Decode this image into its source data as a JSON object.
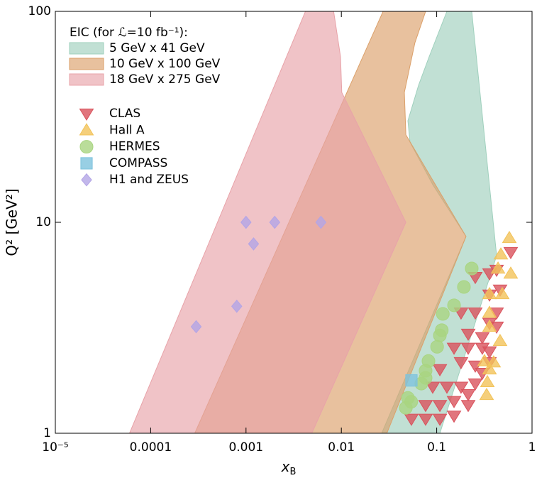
{
  "chart_data": {
    "type": "scatter",
    "xlabel": "x",
    "xlabel_subscript": "B",
    "ylabel": "Q² [GeV²]",
    "xscale": "log",
    "yscale": "log",
    "xlim": [
      1e-05,
      1
    ],
    "ylim": [
      1,
      100
    ],
    "xticks": [
      {
        "value": 1e-05,
        "label": "10⁻⁵"
      },
      0.0001,
      0.001,
      0.01,
      0.1,
      1
    ],
    "yticks": [
      1,
      10,
      100
    ],
    "legend_title": "EIC (for ℒ=10 fb⁻¹):",
    "legend": "upper left",
    "series": [
      {
        "name": "5 GeV x 41 GeV",
        "type": "area",
        "color": "#9fd0bd",
        "x": [
          0.0265,
          0.203,
          0.0908,
          0.0525,
          0.0499,
          0.0646,
          0.0834,
          0.128,
          0.233,
          0.425,
          0.108
        ],
        "y": [
          1,
          8.57,
          15.1,
          24,
          30.3,
          44.7,
          61,
          100,
          100,
          6.95,
          1
        ]
      },
      {
        "name": "10 GeV x 100 GeV",
        "type": "area",
        "color": "#dba06a",
        "x": [
          0.00029,
          0.0274,
          0.0766,
          0.0591,
          0.0458,
          0.0475,
          0.203,
          0.03
        ],
        "y": [
          1,
          100,
          100,
          71,
          41.3,
          26,
          8.57,
          1
        ]
      },
      {
        "name": "18 GeV x 275 GeV",
        "type": "area",
        "color": "#e8a3a9",
        "x": [
          6e-05,
          0.0042,
          0.0083,
          0.0098,
          0.0101,
          0.0475,
          0.0049
        ],
        "y": [
          1,
          100,
          100,
          61,
          41.3,
          10,
          1
        ]
      },
      {
        "name": "CLAS",
        "type": "scatter",
        "marker": "triangle-down",
        "color": "#d9535d",
        "x": [
          0.598,
          0.425,
          0.358,
          0.254,
          0.462,
          0.358,
          0.254,
          0.18,
          0.425,
          0.358,
          0.214,
          0.301,
          0.425,
          0.152,
          0.214,
          0.301,
          0.358,
          0.108,
          0.18,
          0.254,
          0.358,
          0.0908,
          0.128,
          0.18,
          0.254,
          0.0765,
          0.108,
          0.152,
          0.214,
          0.0765,
          0.108,
          0.152,
          0.0543,
          0.214,
          0.301
        ],
        "y": [
          7.22,
          5.95,
          5.72,
          5.5,
          4.79,
          4.54,
          3.73,
          3.73,
          3.73,
          3.33,
          2.96,
          2.85,
          3.2,
          2.54,
          2.54,
          2.54,
          2.44,
          2.01,
          2.17,
          2.09,
          2.17,
          1.66,
          1.66,
          1.66,
          1.72,
          1.36,
          1.36,
          1.42,
          1.36,
          1.17,
          1.17,
          1.21,
          1.17,
          1.53,
          1.93
        ]
      },
      {
        "name": "Hall A",
        "type": "scatter",
        "marker": "triangle-up",
        "color": "#f2c35a",
        "x": [
          0.578,
          0.471,
          0.44,
          0.598,
          0.358,
          0.487,
          0.358,
          0.358,
          0.462,
          0.317,
          0.358,
          0.396,
          0.34,
          0.334
        ],
        "y": [
          8.43,
          7.05,
          6.04,
          5.72,
          4.57,
          4.57,
          3.73,
          3.2,
          2.74,
          2.2,
          2.01,
          2.17,
          1.75,
          1.52
        ]
      },
      {
        "name": "HERMES",
        "type": "scatter",
        "marker": "circle",
        "color": "#a9d581",
        "x": [
          0.233,
          0.193,
          0.152,
          0.116,
          0.113,
          0.108,
          0.101,
          0.082,
          0.0765,
          0.0765,
          0.069,
          0.0499,
          0.0475,
          0.054
        ],
        "y": [
          6.04,
          4.94,
          4.04,
          3.68,
          3.08,
          2.91,
          2.57,
          2.2,
          1.98,
          1.83,
          1.72,
          1.47,
          1.32,
          1.41
        ]
      },
      {
        "name": "COMPASS",
        "type": "scatter",
        "marker": "square",
        "color": "#7ec3dd",
        "x": [
          0.0543
        ],
        "y": [
          1.78
        ]
      },
      {
        "name": "H1 and ZEUS",
        "type": "scatter",
        "marker": "diamond",
        "color": "#b3a5e6",
        "x": [
          0.0003,
          0.0008,
          0.001,
          0.0012,
          0.002,
          0.0061
        ],
        "y": [
          3.2,
          4.0,
          10,
          7.9,
          10,
          10
        ]
      }
    ]
  }
}
